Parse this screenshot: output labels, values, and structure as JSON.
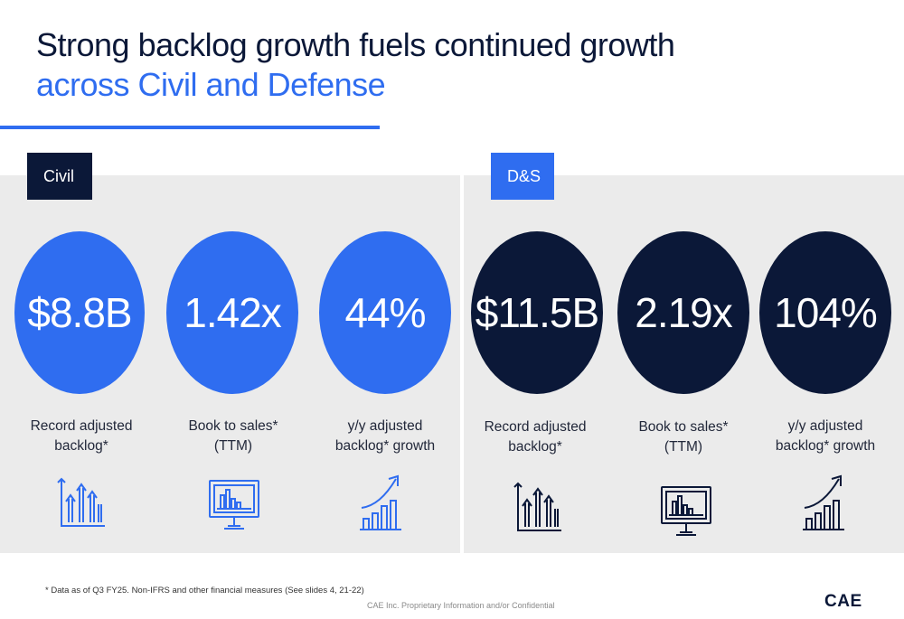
{
  "title": {
    "line1": "Strong backlog growth fuels continued growth",
    "line2": "across Civil and Defense"
  },
  "sections": {
    "civil": {
      "label": "Civil",
      "color": "#2f6df0",
      "metrics": [
        {
          "value": "$8.8B",
          "caption_line1": "Record adjusted",
          "caption_line2": "backlog*",
          "icon": "bar-chart-arrows-icon"
        },
        {
          "value": "1.42x",
          "caption_line1": "Book to sales*",
          "caption_line2": "(TTM)",
          "icon": "monitor-chart-icon"
        },
        {
          "value": "44%",
          "caption_line1": "y/y adjusted",
          "caption_line2": "backlog* growth",
          "icon": "growth-arrow-icon"
        }
      ]
    },
    "ds": {
      "label": "D&S",
      "color": "#0b1838",
      "metrics": [
        {
          "value": "$11.5B",
          "caption_line1": "Record adjusted",
          "caption_line2": "backlog*",
          "icon": "bar-chart-arrows-icon"
        },
        {
          "value": "2.19x",
          "caption_line1": "Book to sales*",
          "caption_line2": "(TTM)",
          "icon": "monitor-chart-icon"
        },
        {
          "value": "104%",
          "caption_line1": "y/y adjusted",
          "caption_line2": "backlog* growth",
          "icon": "growth-arrow-icon"
        }
      ]
    }
  },
  "footnote": "* Data as of Q3 FY25.  Non-IFRS and other financial measures (See slides 4, 21-22)",
  "confidential": "CAE Inc. Proprietary Information and/or Confidential",
  "logo": "CAE",
  "colors": {
    "accent": "#2f6df0",
    "navy": "#0b1838",
    "panel": "#ebebeb"
  }
}
